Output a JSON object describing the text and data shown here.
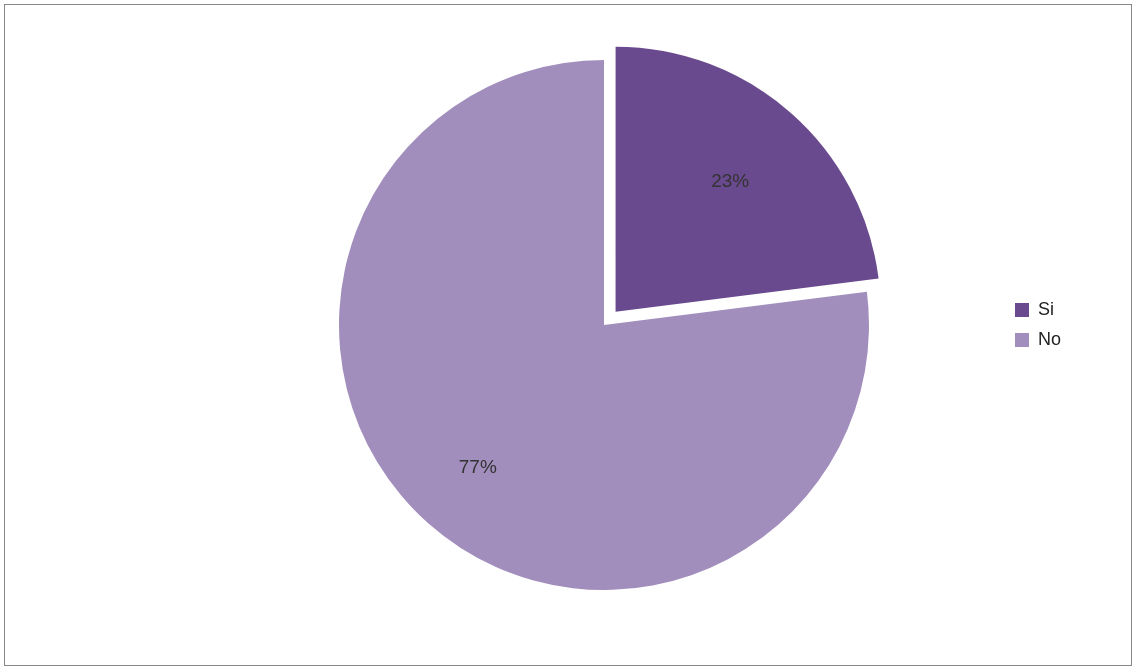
{
  "chart_data": {
    "type": "pie",
    "categories": [
      "Si",
      "No"
    ],
    "values": [
      23,
      77
    ],
    "value_labels": [
      "23%",
      "77%"
    ],
    "colors": [
      "#6a4a8e",
      "#a18ebd"
    ],
    "legend": "right"
  }
}
